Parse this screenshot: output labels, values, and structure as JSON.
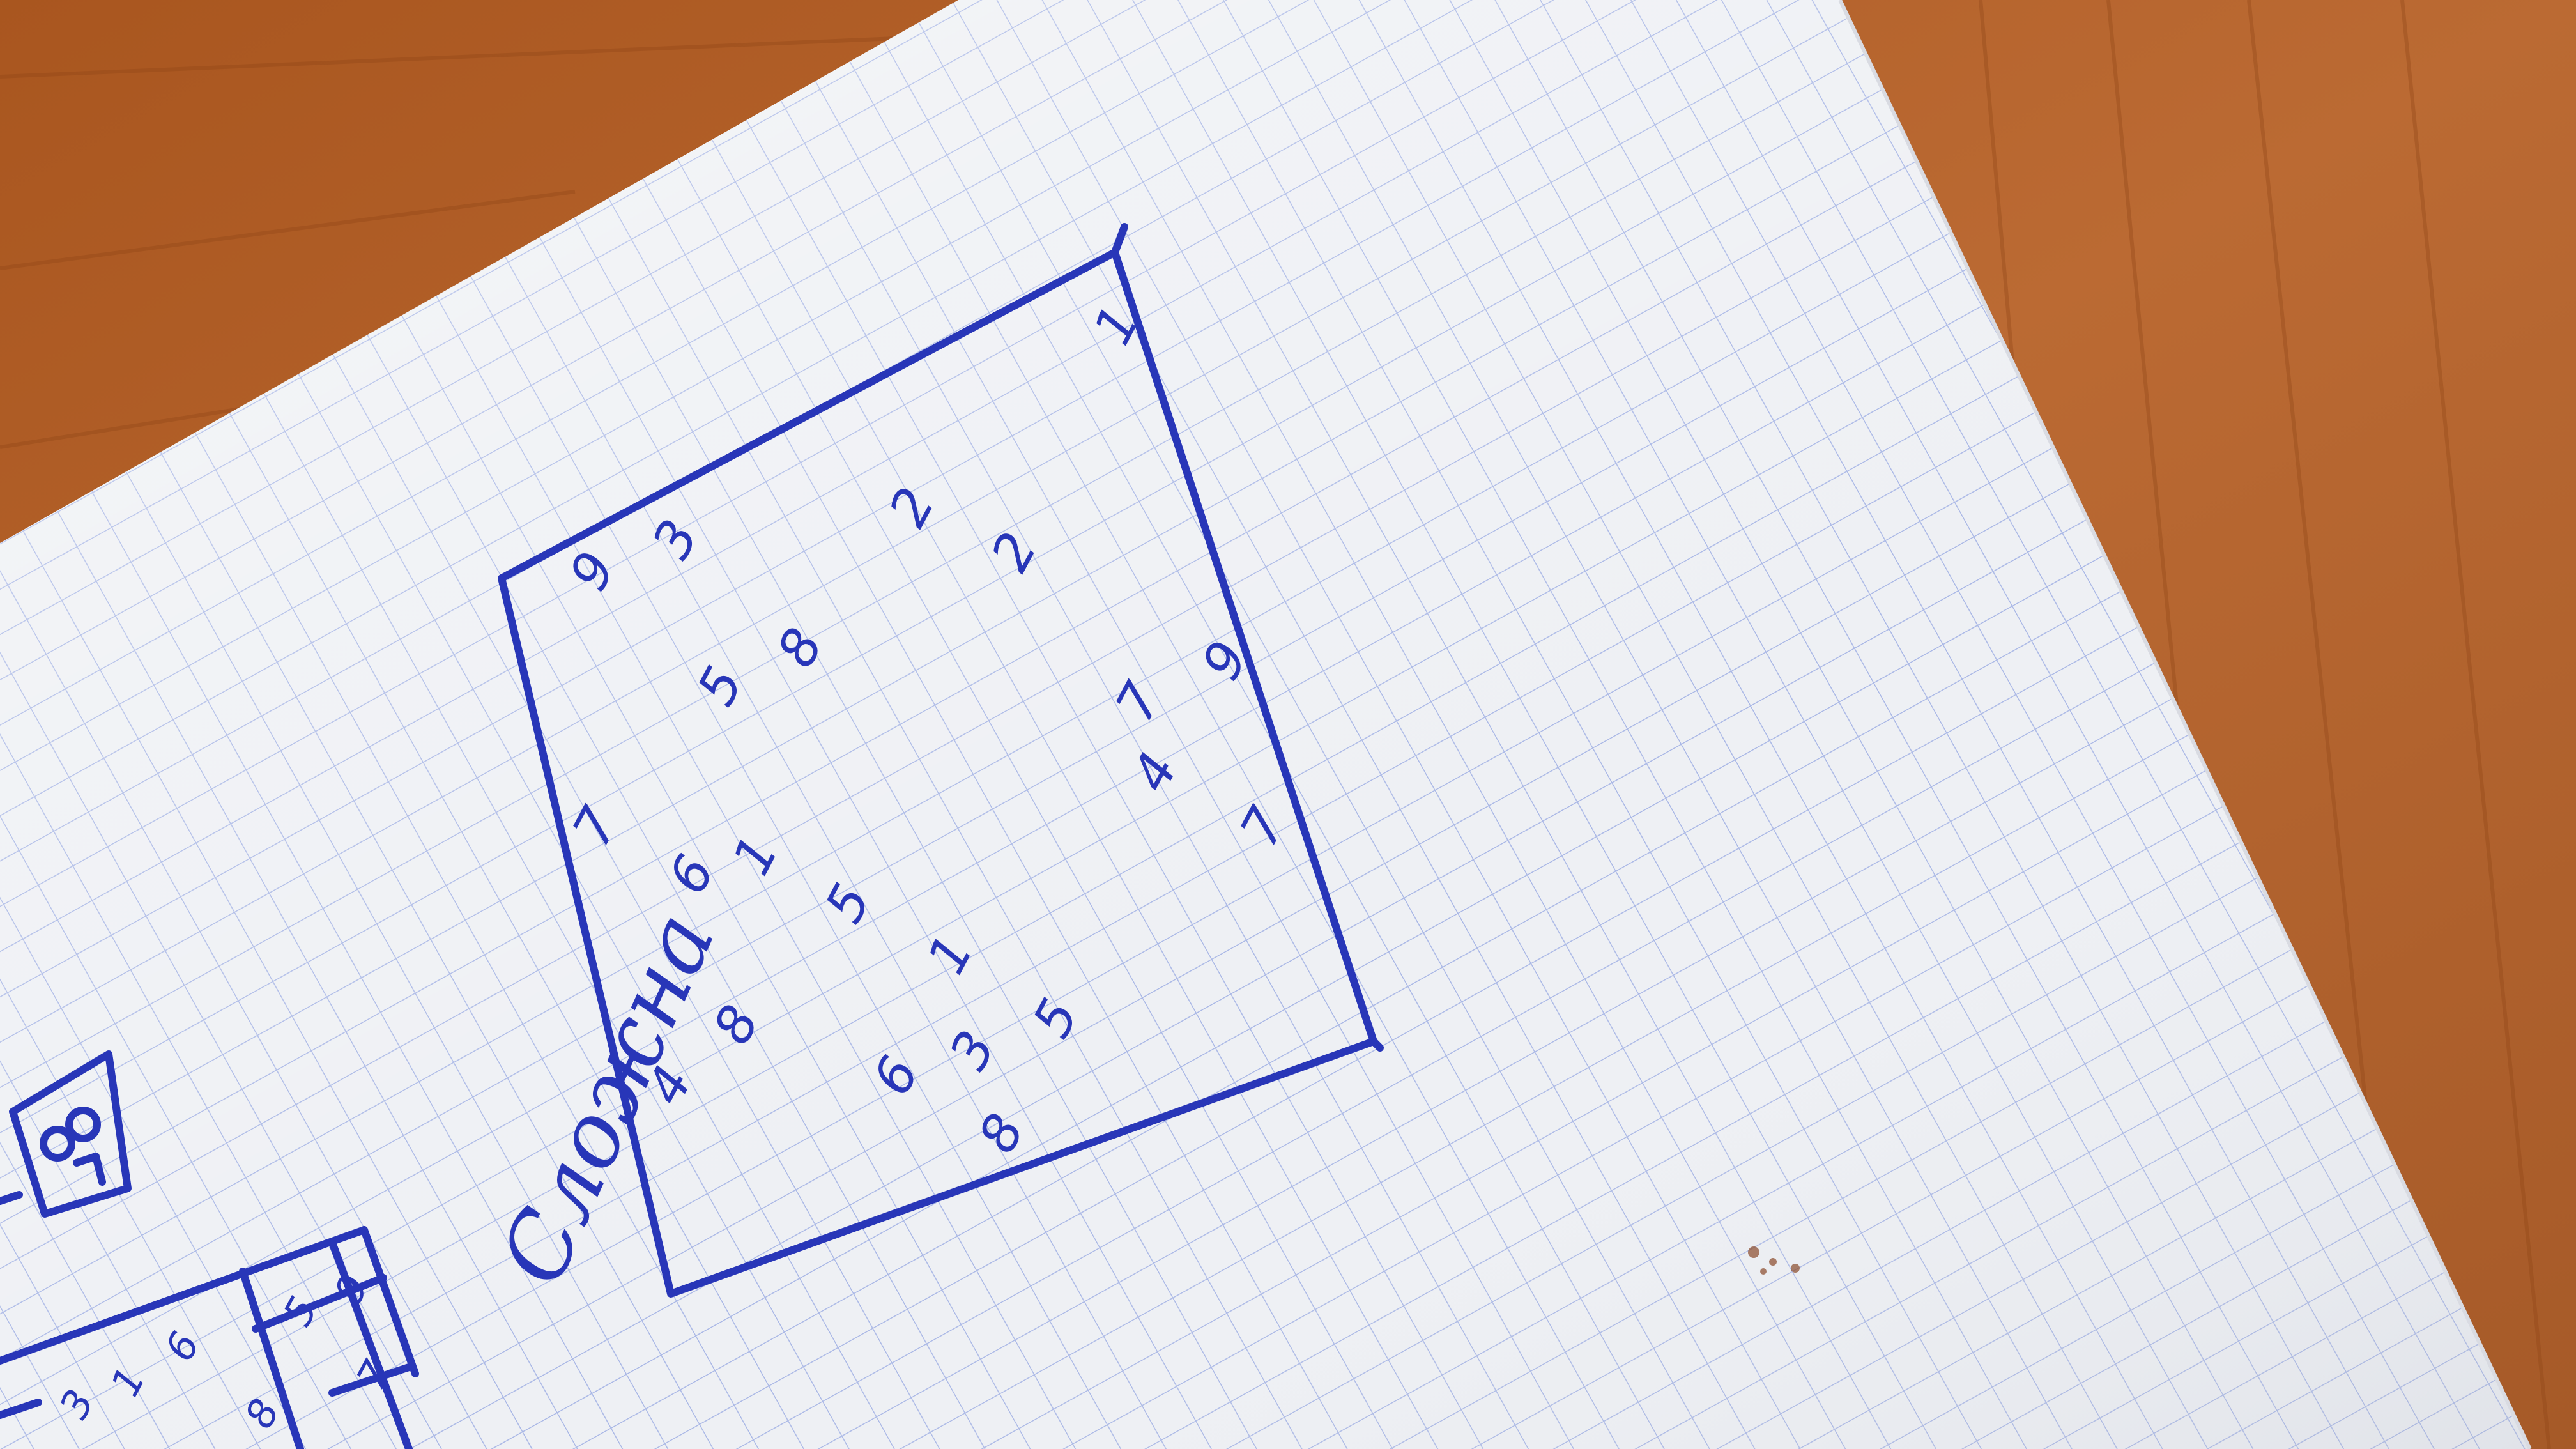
{
  "scene": {
    "description_colors": {
      "table": "#b5642e",
      "paper": "#eef0f4",
      "grid_line": "#aab8e6",
      "ink": "#2836b8"
    }
  },
  "heading": {
    "text": "Сложна"
  },
  "sudoku_main": {
    "digits": [
      {
        "id": "d01",
        "value": "9"
      },
      {
        "id": "d02",
        "value": "3"
      },
      {
        "id": "d03",
        "value": "2"
      },
      {
        "id": "d04",
        "value": "1"
      },
      {
        "id": "d05",
        "value": "5"
      },
      {
        "id": "d06",
        "value": "8"
      },
      {
        "id": "d07",
        "value": "2"
      },
      {
        "id": "d08",
        "value": "7"
      },
      {
        "id": "d09",
        "value": "6"
      },
      {
        "id": "d10",
        "value": "1"
      },
      {
        "id": "d11",
        "value": "5"
      },
      {
        "id": "d12",
        "value": "7"
      },
      {
        "id": "d13",
        "value": "9"
      },
      {
        "id": "d14",
        "value": "4"
      },
      {
        "id": "d15",
        "value": "1"
      },
      {
        "id": "d16",
        "value": "4"
      },
      {
        "id": "d17",
        "value": "8"
      },
      {
        "id": "d18",
        "value": "6"
      },
      {
        "id": "d19",
        "value": "3"
      },
      {
        "id": "d20",
        "value": "5"
      },
      {
        "id": "d21",
        "value": "8"
      },
      {
        "id": "d22",
        "value": "7"
      }
    ]
  },
  "sudoku_partial": {
    "digits": [
      {
        "id": "p01",
        "value": "3"
      },
      {
        "id": "p02",
        "value": "1"
      },
      {
        "id": "p03",
        "value": "6"
      },
      {
        "id": "p04",
        "value": "8"
      },
      {
        "id": "p05",
        "value": "5"
      },
      {
        "id": "p06",
        "value": "9"
      },
      {
        "id": "p07",
        "value": "7"
      }
    ]
  }
}
